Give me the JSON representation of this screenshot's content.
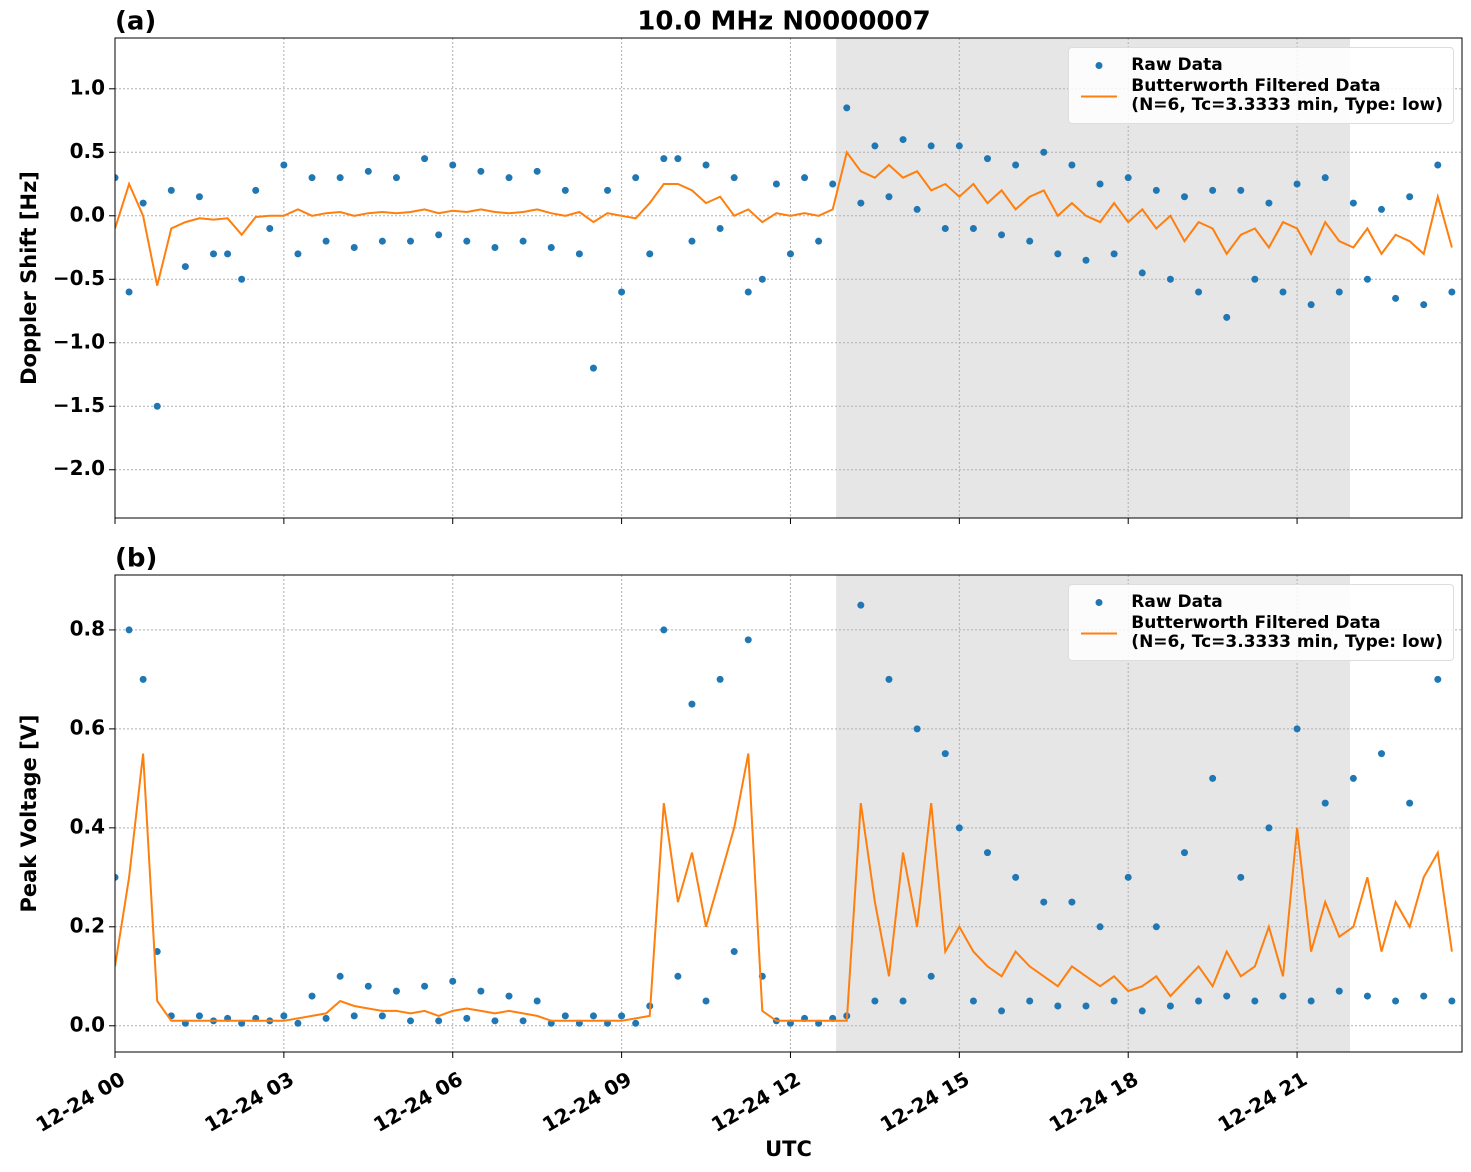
{
  "chart_data": [
    {
      "type": "line",
      "title": "10.0 MHz N0000007",
      "panel_label": "(a)",
      "ylabel": "Doppler Shift [Hz]",
      "xlim": [
        0,
        23.93
      ],
      "ylim": [
        -2.38,
        1.4
      ],
      "yticks": [
        {
          "value": -2.0,
          "label": "−2.0"
        },
        {
          "value": -1.5,
          "label": "−1.5"
        },
        {
          "value": -1.0,
          "label": "−1.0"
        },
        {
          "value": -0.5,
          "label": "−0.5"
        },
        {
          "value": 0.0,
          "label": "0.0"
        },
        {
          "value": 0.5,
          "label": "0.5"
        },
        {
          "value": 1.0,
          "label": "1.0"
        }
      ],
      "grid": true,
      "legend": "upper right",
      "shaded_span": [
        12.81,
        21.94
      ],
      "shade_color": "#e6e6e6",
      "x": [
        0,
        0.25,
        0.5,
        0.75,
        1,
        1.25,
        1.5,
        1.75,
        2,
        2.25,
        2.5,
        2.75,
        3,
        3.25,
        3.5,
        3.75,
        4,
        4.25,
        4.5,
        4.75,
        5,
        5.25,
        5.5,
        5.75,
        6,
        6.25,
        6.5,
        6.75,
        7,
        7.25,
        7.5,
        7.75,
        8,
        8.25,
        8.5,
        8.75,
        9,
        9.25,
        9.5,
        9.75,
        10,
        10.25,
        10.5,
        10.75,
        11,
        11.25,
        11.5,
        11.75,
        12,
        12.25,
        12.5,
        12.75,
        13,
        13.25,
        13.5,
        13.75,
        14,
        14.25,
        14.5,
        14.75,
        15,
        15.25,
        15.5,
        15.75,
        16,
        16.25,
        16.5,
        16.75,
        17,
        17.25,
        17.5,
        17.75,
        18,
        18.25,
        18.5,
        18.75,
        19,
        19.25,
        19.5,
        19.75,
        20,
        20.25,
        20.5,
        20.75,
        21,
        21.25,
        21.5,
        21.75,
        22,
        22.25,
        22.5,
        22.75,
        23,
        23.25,
        23.5,
        23.75
      ],
      "series": [
        {
          "name": "Raw Data",
          "style": "markers",
          "color": "#1f77b4",
          "values": [
            0.3,
            -0.6,
            0.1,
            -1.5,
            0.2,
            -0.4,
            0.15,
            -0.3,
            -0.3,
            -0.5,
            0.2,
            -0.1,
            0.4,
            -0.3,
            0.3,
            -0.2,
            0.3,
            -0.25,
            0.35,
            -0.2,
            0.3,
            -0.2,
            0.45,
            -0.15,
            0.4,
            -0.2,
            0.35,
            -0.25,
            0.3,
            -0.2,
            0.35,
            -0.25,
            0.2,
            -0.3,
            -1.2,
            0.2,
            -0.6,
            0.3,
            -0.3,
            0.45,
            0.45,
            -0.2,
            0.4,
            -0.1,
            0.3,
            -0.6,
            -0.5,
            0.25,
            -0.3,
            0.3,
            -0.2,
            0.25,
            0.85,
            0.1,
            0.55,
            0.15,
            0.6,
            0.05,
            0.55,
            -0.1,
            0.55,
            -0.1,
            0.45,
            -0.15,
            0.4,
            -0.2,
            0.5,
            -0.3,
            0.4,
            -0.35,
            0.25,
            -0.3,
            0.3,
            -0.45,
            0.2,
            -0.5,
            0.15,
            -0.6,
            0.2,
            -0.8,
            0.2,
            -0.5,
            0.1,
            -0.6,
            0.25,
            -0.7,
            0.3,
            -0.6,
            0.1,
            -0.5,
            0.05,
            -0.65,
            0.15,
            -0.7,
            0.4,
            -0.6
          ]
        },
        {
          "name": "Butterworth Filtered Data\n(N=6, Tc=3.3333 min, Type: low)",
          "style": "line",
          "color": "#ff7f0e",
          "values": [
            -0.1,
            0.25,
            0.0,
            -0.55,
            -0.1,
            -0.05,
            -0.02,
            -0.03,
            -0.02,
            -0.15,
            -0.01,
            0.0,
            0.0,
            0.05,
            0.0,
            0.02,
            0.03,
            0.0,
            0.02,
            0.03,
            0.02,
            0.03,
            0.05,
            0.02,
            0.04,
            0.03,
            0.05,
            0.03,
            0.02,
            0.03,
            0.05,
            0.02,
            0.0,
            0.03,
            -0.05,
            0.02,
            0.0,
            -0.02,
            0.1,
            0.25,
            0.25,
            0.2,
            0.1,
            0.15,
            0.0,
            0.05,
            -0.05,
            0.02,
            0.0,
            0.02,
            0.0,
            0.05,
            0.5,
            0.35,
            0.3,
            0.4,
            0.3,
            0.35,
            0.2,
            0.25,
            0.15,
            0.25,
            0.1,
            0.2,
            0.05,
            0.15,
            0.2,
            0.0,
            0.1,
            0.0,
            -0.05,
            0.1,
            -0.05,
            0.05,
            -0.1,
            0.0,
            -0.2,
            -0.05,
            -0.1,
            -0.3,
            -0.15,
            -0.1,
            -0.25,
            -0.05,
            -0.1,
            -0.3,
            -0.05,
            -0.2,
            -0.25,
            -0.1,
            -0.3,
            -0.15,
            -0.2,
            -0.3,
            0.15,
            -0.25
          ]
        }
      ]
    },
    {
      "type": "line",
      "panel_label": "(b)",
      "ylabel": "Peak Voltage [V]",
      "xlabel": "UTC",
      "xlim": [
        0,
        23.93
      ],
      "ylim": [
        -0.053,
        0.911
      ],
      "xticks": [
        {
          "value": 0,
          "label": "12-24 00"
        },
        {
          "value": 3,
          "label": "12-24 03"
        },
        {
          "value": 6,
          "label": "12-24 06"
        },
        {
          "value": 9,
          "label": "12-24 09"
        },
        {
          "value": 12,
          "label": "12-24 12"
        },
        {
          "value": 15,
          "label": "12-24 15"
        },
        {
          "value": 18,
          "label": "12-24 18"
        },
        {
          "value": 21,
          "label": "12-24 21"
        }
      ],
      "yticks": [
        {
          "value": 0.0,
          "label": "0.0"
        },
        {
          "value": 0.2,
          "label": "0.2"
        },
        {
          "value": 0.4,
          "label": "0.4"
        },
        {
          "value": 0.6,
          "label": "0.6"
        },
        {
          "value": 0.8,
          "label": "0.8"
        }
      ],
      "grid": true,
      "legend": "upper right",
      "shaded_span": [
        12.81,
        21.94
      ],
      "shade_color": "#e6e6e6",
      "x": [
        0,
        0.25,
        0.5,
        0.75,
        1,
        1.25,
        1.5,
        1.75,
        2,
        2.25,
        2.5,
        2.75,
        3,
        3.25,
        3.5,
        3.75,
        4,
        4.25,
        4.5,
        4.75,
        5,
        5.25,
        5.5,
        5.75,
        6,
        6.25,
        6.5,
        6.75,
        7,
        7.25,
        7.5,
        7.75,
        8,
        8.25,
        8.5,
        8.75,
        9,
        9.25,
        9.5,
        9.75,
        10,
        10.25,
        10.5,
        10.75,
        11,
        11.25,
        11.5,
        11.75,
        12,
        12.25,
        12.5,
        12.75,
        13,
        13.25,
        13.5,
        13.75,
        14,
        14.25,
        14.5,
        14.75,
        15,
        15.25,
        15.5,
        15.75,
        16,
        16.25,
        16.5,
        16.75,
        17,
        17.25,
        17.5,
        17.75,
        18,
        18.25,
        18.5,
        18.75,
        19,
        19.25,
        19.5,
        19.75,
        20,
        20.25,
        20.5,
        20.75,
        21,
        21.25,
        21.5,
        21.75,
        22,
        22.25,
        22.5,
        22.75,
        23,
        23.25,
        23.5,
        23.75
      ],
      "series": [
        {
          "name": "Raw Data",
          "style": "markers",
          "color": "#1f77b4",
          "values": [
            0.3,
            0.8,
            0.7,
            0.15,
            0.02,
            0.005,
            0.02,
            0.01,
            0.015,
            0.005,
            0.015,
            0.01,
            0.02,
            0.005,
            0.06,
            0.015,
            0.1,
            0.02,
            0.08,
            0.02,
            0.07,
            0.01,
            0.08,
            0.01,
            0.09,
            0.015,
            0.07,
            0.01,
            0.06,
            0.01,
            0.05,
            0.005,
            0.02,
            0.005,
            0.02,
            0.005,
            0.02,
            0.005,
            0.04,
            0.8,
            0.1,
            0.65,
            0.05,
            0.7,
            0.15,
            0.78,
            0.1,
            0.01,
            0.005,
            0.015,
            0.005,
            0.015,
            0.02,
            0.85,
            0.05,
            0.7,
            0.05,
            0.6,
            0.1,
            0.55,
            0.4,
            0.05,
            0.35,
            0.03,
            0.3,
            0.05,
            0.25,
            0.04,
            0.25,
            0.04,
            0.2,
            0.05,
            0.3,
            0.03,
            0.2,
            0.04,
            0.35,
            0.05,
            0.5,
            0.06,
            0.3,
            0.05,
            0.4,
            0.06,
            0.6,
            0.05,
            0.45,
            0.07,
            0.5,
            0.06,
            0.55,
            0.05,
            0.45,
            0.06,
            0.7,
            0.05
          ]
        },
        {
          "name": "Butterworth Filtered Data\n(N=6, Tc=3.3333 min, Type: low)",
          "style": "line",
          "color": "#ff7f0e",
          "values": [
            0.12,
            0.3,
            0.55,
            0.05,
            0.01,
            0.01,
            0.01,
            0.01,
            0.01,
            0.01,
            0.01,
            0.01,
            0.01,
            0.015,
            0.02,
            0.025,
            0.05,
            0.04,
            0.035,
            0.03,
            0.03,
            0.025,
            0.03,
            0.02,
            0.03,
            0.035,
            0.03,
            0.025,
            0.03,
            0.025,
            0.02,
            0.01,
            0.01,
            0.01,
            0.01,
            0.01,
            0.01,
            0.015,
            0.02,
            0.45,
            0.25,
            0.35,
            0.2,
            0.3,
            0.4,
            0.55,
            0.03,
            0.01,
            0.01,
            0.01,
            0.01,
            0.01,
            0.01,
            0.45,
            0.25,
            0.1,
            0.35,
            0.2,
            0.45,
            0.15,
            0.2,
            0.15,
            0.12,
            0.1,
            0.15,
            0.12,
            0.1,
            0.08,
            0.12,
            0.1,
            0.08,
            0.1,
            0.07,
            0.08,
            0.1,
            0.06,
            0.09,
            0.12,
            0.08,
            0.15,
            0.1,
            0.12,
            0.2,
            0.1,
            0.4,
            0.15,
            0.25,
            0.18,
            0.2,
            0.3,
            0.15,
            0.25,
            0.2,
            0.3,
            0.35,
            0.15
          ]
        }
      ]
    }
  ]
}
